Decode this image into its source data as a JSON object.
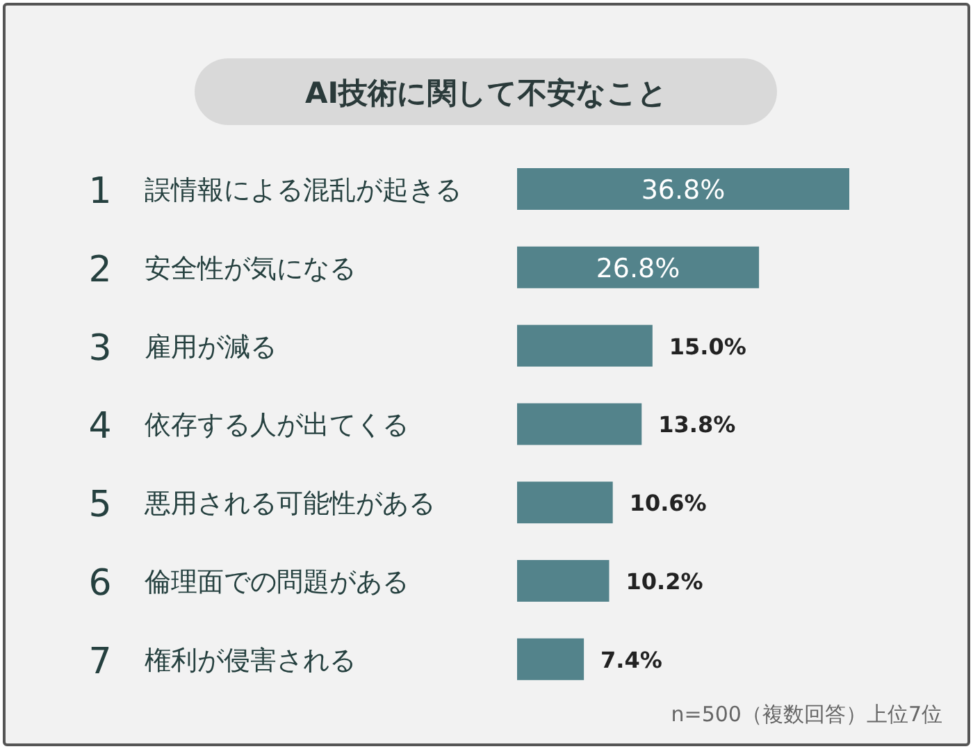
{
  "chart_data": {
    "type": "bar",
    "orientation": "horizontal",
    "title": "AI技術に関して不安なこと",
    "categories": [
      "1 誤情報による混乱が起きる",
      "2 安全性が気になる",
      "3 雇用が減る",
      "4 依存する人が出てくる",
      "5 悪用される可能性がある",
      "6 倫理面での問題がある",
      "7 権利が侵害される"
    ],
    "values": [
      36.8,
      26.8,
      15.0,
      13.8,
      10.6,
      10.2,
      7.4
    ],
    "value_labels": [
      "36.8%",
      "26.8%",
      "15.0%",
      "13.8%",
      "10.6%",
      "10.2%",
      "7.4%"
    ],
    "color": "#53838b",
    "annotations": [
      "n=500（複数回答）上位7位"
    ]
  }
}
